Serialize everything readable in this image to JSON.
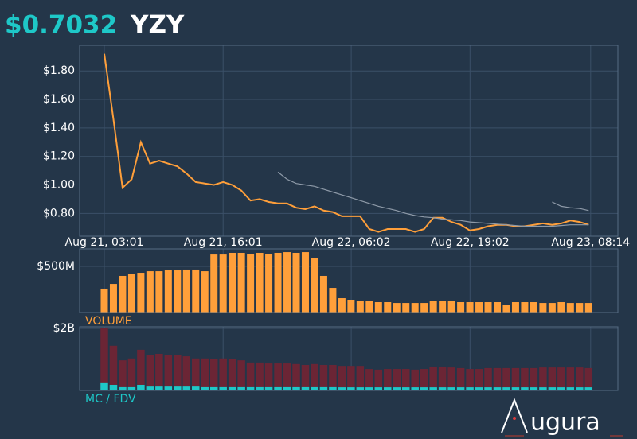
{
  "header": {
    "price": "$0.7032",
    "symbol": "YZY"
  },
  "logo": "ugura",
  "chart_data": [
    {
      "type": "line",
      "x": [
        0,
        1,
        2,
        3,
        4,
        5,
        6,
        7,
        8,
        9,
        10,
        11,
        12,
        13,
        14,
        15,
        16,
        17,
        18,
        19,
        20,
        21,
        22,
        23,
        24,
        25,
        26,
        27,
        28,
        29,
        30,
        31,
        32,
        33,
        34,
        35,
        36,
        37,
        38,
        39,
        40,
        41,
        42,
        43,
        44,
        45,
        46,
        47,
        48,
        49,
        50,
        51,
        52,
        53
      ],
      "xlim": [
        -2.7,
        56.2
      ],
      "xticks": [
        {
          "value": 0,
          "label": "Aug 21, 03:01"
        },
        {
          "value": 13,
          "label": "Aug 21, 16:01"
        },
        {
          "value": 27.02,
          "label": "Aug 22, 06:02"
        },
        {
          "value": 40.02,
          "label": "Aug 22, 19:02"
        },
        {
          "value": 53.22,
          "label": "Aug 23, 08:14"
        }
      ],
      "ylim": [
        0.64,
        1.98
      ],
      "yticks": [
        {
          "value": 0.8,
          "label": "$0.80"
        },
        {
          "value": 1.0,
          "label": "$1.00"
        },
        {
          "value": 1.2,
          "label": "$1.20"
        },
        {
          "value": 1.4,
          "label": "$1.40"
        },
        {
          "value": 1.6,
          "label": "$1.60"
        },
        {
          "value": 1.8,
          "label": "$1.80"
        }
      ],
      "grid": true,
      "series": [
        {
          "color": "#ff9f3a",
          "values": [
            1.92,
            1.46,
            0.98,
            1.04,
            1.3,
            1.15,
            1.17,
            1.15,
            1.13,
            1.08,
            1.02,
            1.01,
            1.0,
            1.02,
            1.0,
            0.96,
            0.89,
            0.9,
            0.88,
            0.87,
            0.87,
            0.84,
            0.83,
            0.85,
            0.82,
            0.81,
            0.78,
            0.78,
            0.78,
            0.69,
            0.67,
            0.69,
            0.69,
            0.69,
            0.67,
            0.69,
            0.77,
            0.77,
            0.74,
            0.72,
            0.68,
            0.69,
            0.71,
            0.72,
            0.72,
            0.71,
            0.71,
            0.72,
            0.73,
            0.72,
            0.73,
            0.75,
            0.74,
            0.72
          ]
        },
        {
          "color": "#8e9aa8",
          "values": [
            null,
            null,
            null,
            null,
            null,
            null,
            null,
            null,
            null,
            null,
            null,
            null,
            null,
            null,
            null,
            null,
            null,
            null,
            null,
            1.09,
            1.04,
            1.01,
            1.0,
            0.99,
            0.97,
            0.95,
            0.93,
            0.91,
            0.89,
            0.87,
            0.85,
            0.835,
            0.82,
            0.8,
            0.785,
            0.775,
            0.77,
            0.76,
            0.755,
            0.75,
            0.74,
            0.735,
            0.73,
            0.725,
            0.72,
            0.715,
            0.71,
            0.71,
            0.71,
            0.71,
            0.715,
            0.72,
            0.72,
            0.72
          ]
        },
        {
          "color": "#8e9aa8",
          "values": [
            null,
            null,
            null,
            null,
            null,
            null,
            null,
            null,
            null,
            null,
            null,
            null,
            null,
            null,
            null,
            null,
            null,
            null,
            null,
            null,
            null,
            null,
            null,
            null,
            null,
            null,
            null,
            null,
            null,
            null,
            null,
            null,
            null,
            null,
            null,
            null,
            null,
            null,
            null,
            null,
            null,
            null,
            null,
            null,
            null,
            null,
            null,
            null,
            null,
            0.88,
            0.85,
            0.84,
            0.835,
            0.82
          ]
        }
      ]
    },
    {
      "type": "bar",
      "label": "VOLUME",
      "ylim": [
        0,
        690
      ],
      "yticks": [
        {
          "value": 500,
          "label": "$500M"
        }
      ],
      "grid": true,
      "series": [
        {
          "color": "#ff9f3a",
          "values": [
            259,
            310,
            397,
            414,
            431,
            448,
            448,
            457,
            457,
            466,
            466,
            448,
            629,
            629,
            647,
            647,
            638,
            647,
            638,
            647,
            655,
            647,
            655,
            595,
            397,
            267,
            155,
            138,
            121,
            121,
            112,
            112,
            103,
            103,
            103,
            103,
            121,
            129,
            121,
            112,
            112,
            112,
            112,
            112,
            86,
            112,
            112,
            112,
            103,
            103,
            112,
            103,
            103,
            103
          ]
        }
      ]
    },
    {
      "type": "bar",
      "label": "MC / FDV",
      "ylim": [
        0,
        2.05
      ],
      "yticks": [
        {
          "value": 2,
          "label": "$2B"
        }
      ],
      "grid": true,
      "series": [
        {
          "color": "#6b2535",
          "values": [
            2.0,
            1.44,
            0.97,
            1.03,
            1.31,
            1.15,
            1.18,
            1.15,
            1.13,
            1.1,
            1.03,
            1.03,
            1.0,
            1.03,
            1.0,
            0.97,
            0.9,
            0.9,
            0.87,
            0.87,
            0.87,
            0.85,
            0.82,
            0.85,
            0.82,
            0.82,
            0.79,
            0.79,
            0.79,
            0.69,
            0.67,
            0.69,
            0.69,
            0.69,
            0.67,
            0.69,
            0.77,
            0.77,
            0.74,
            0.72,
            0.69,
            0.69,
            0.72,
            0.72,
            0.72,
            0.72,
            0.72,
            0.72,
            0.74,
            0.74,
            0.74,
            0.74,
            0.74,
            0.72
          ]
        },
        {
          "color": "#1ec8c8",
          "values": [
            0.26,
            0.18,
            0.13,
            0.13,
            0.18,
            0.15,
            0.15,
            0.15,
            0.15,
            0.15,
            0.15,
            0.13,
            0.13,
            0.13,
            0.13,
            0.13,
            0.13,
            0.13,
            0.13,
            0.13,
            0.13,
            0.13,
            0.13,
            0.13,
            0.13,
            0.13,
            0.1,
            0.1,
            0.1,
            0.1,
            0.1,
            0.1,
            0.1,
            0.1,
            0.1,
            0.1,
            0.1,
            0.1,
            0.1,
            0.1,
            0.1,
            0.1,
            0.1,
            0.1,
            0.1,
            0.1,
            0.1,
            0.1,
            0.1,
            0.1,
            0.1,
            0.1,
            0.1,
            0.1
          ]
        }
      ]
    }
  ]
}
